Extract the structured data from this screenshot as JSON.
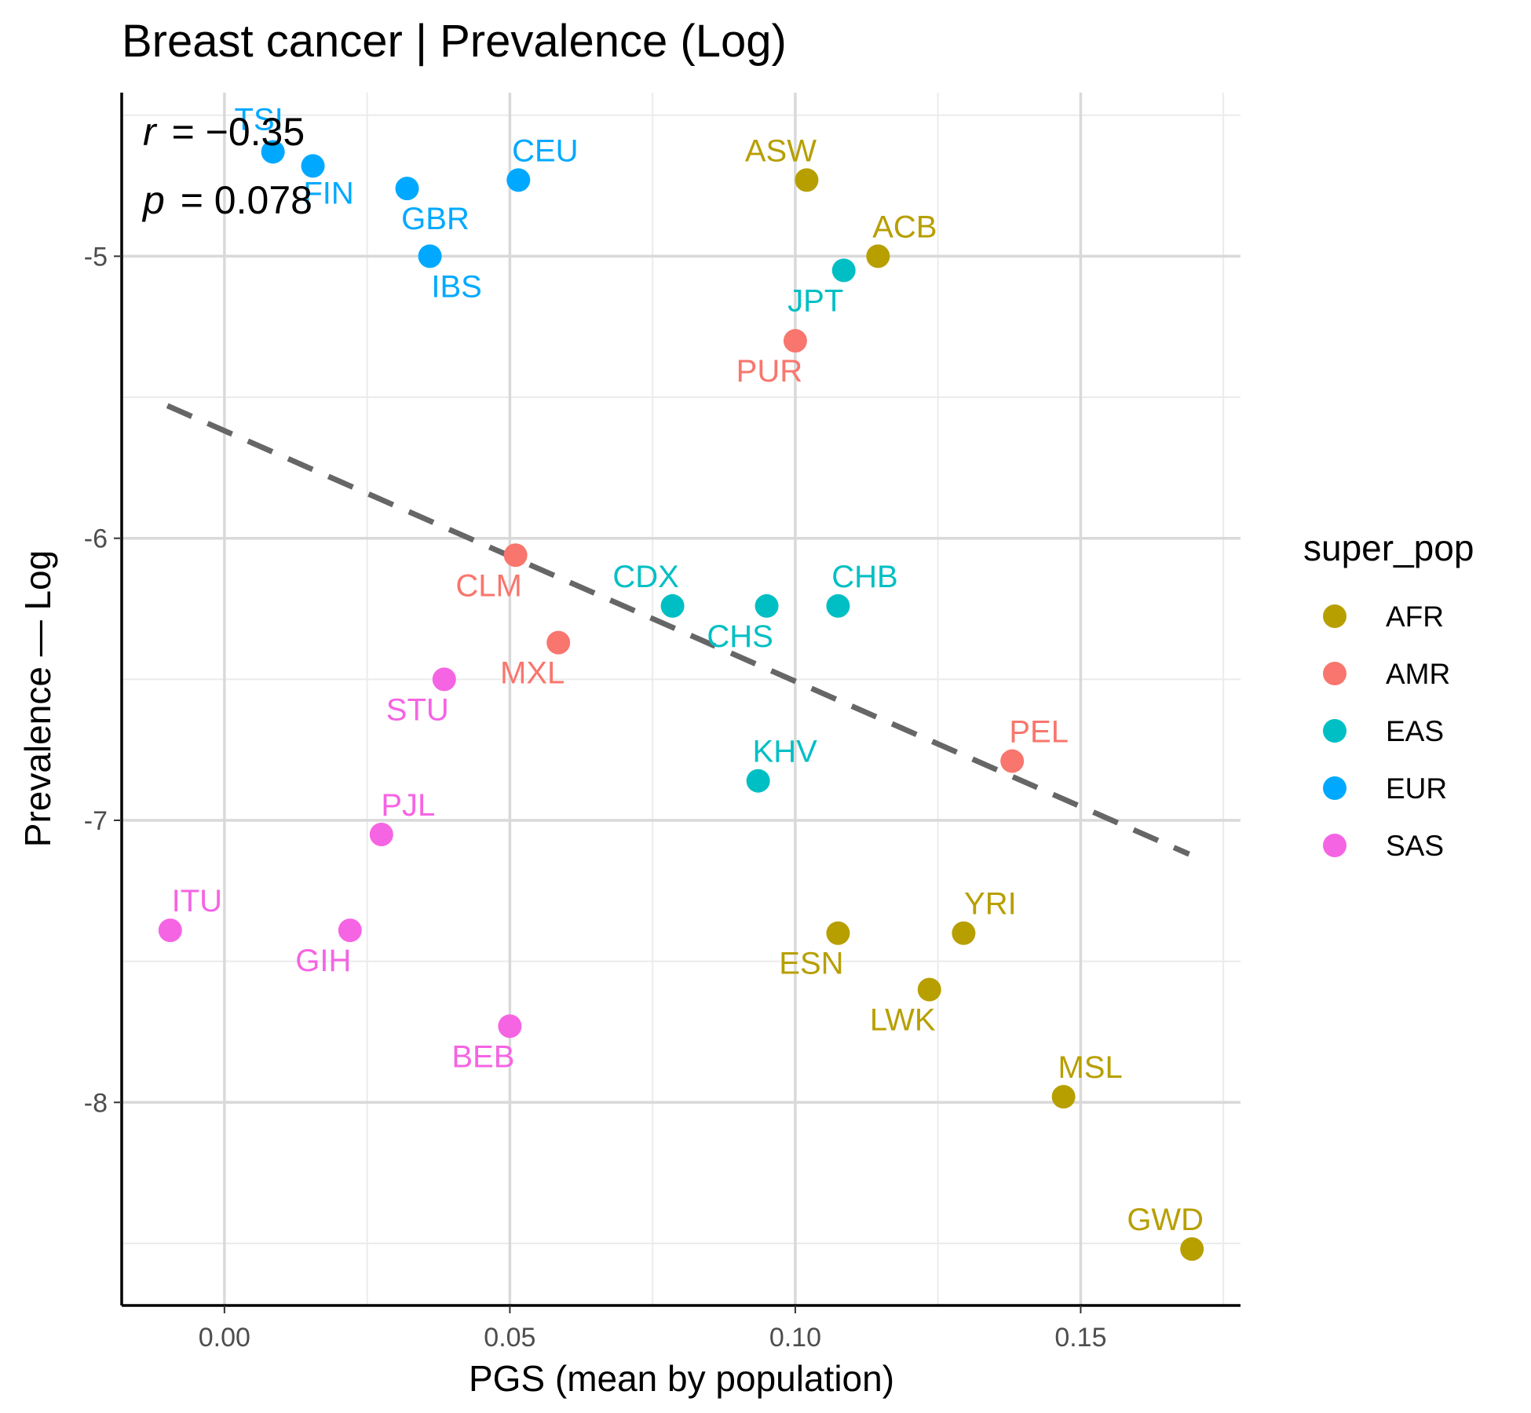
{
  "chart_data": {
    "type": "scatter",
    "title": "Breast cancer | Prevalence (Log)",
    "xlabel": "PGS (mean by population)",
    "ylabel": "Prevalence — Log",
    "xlim": [
      -0.018,
      0.178
    ],
    "ylim": [
      -8.72,
      -4.42
    ],
    "x_ticks": [
      0.0,
      0.05,
      0.1,
      0.15
    ],
    "x_tick_labels": [
      "0.00",
      "0.05",
      "0.10",
      "0.15"
    ],
    "y_ticks": [
      -5,
      -6,
      -7,
      -8
    ],
    "y_tick_labels": [
      "-5",
      "-6",
      "-7",
      "-8"
    ],
    "grid": true,
    "stats": {
      "r_label": "r",
      "r_value": "= −0.35",
      "p_label": "p",
      "p_value": "= 0.078"
    },
    "fit_line": {
      "style": "dashed",
      "color": "#666666",
      "x": [
        -0.01,
        0.169
      ],
      "y": [
        -5.53,
        -7.12
      ]
    },
    "legend": {
      "title": "super_pop",
      "position": "right",
      "entries": [
        {
          "name": "AFR",
          "color": "#B79F00"
        },
        {
          "name": "AMR",
          "color": "#F8766D"
        },
        {
          "name": "EAS",
          "color": "#00BFC4"
        },
        {
          "name": "EUR",
          "color": "#00A9FF"
        },
        {
          "name": "SAS",
          "color": "#F564E3"
        }
      ]
    },
    "points": [
      {
        "label": "TSI",
        "group": "EUR",
        "x": 0.0085,
        "y": -4.63,
        "ldx": -18,
        "ldy": -28
      },
      {
        "label": "FIN",
        "group": "EUR",
        "x": 0.0155,
        "y": -4.68,
        "ldx": 20,
        "ldy": 48
      },
      {
        "label": "GBR",
        "group": "EUR",
        "x": 0.032,
        "y": -4.76,
        "ldx": 36,
        "ldy": 52
      },
      {
        "label": "IBS",
        "group": "EUR",
        "x": 0.036,
        "y": -5.0,
        "ldx": 34,
        "ldy": 52
      },
      {
        "label": "CEU",
        "group": "EUR",
        "x": 0.0515,
        "y": -4.73,
        "ldx": 34,
        "ldy": -24
      },
      {
        "label": "ASW",
        "group": "AFR",
        "x": 0.102,
        "y": -4.73,
        "ldx": -33,
        "ldy": -24
      },
      {
        "label": "ACB",
        "group": "AFR",
        "x": 0.1145,
        "y": -5.0,
        "ldx": 34,
        "ldy": -24
      },
      {
        "label": "JPT",
        "group": "EAS",
        "x": 0.1085,
        "y": -5.05,
        "ldx": -36,
        "ldy": 52
      },
      {
        "label": "PUR",
        "group": "AMR",
        "x": 0.1,
        "y": -5.3,
        "ldx": -33,
        "ldy": 52
      },
      {
        "label": "CLM",
        "group": "AMR",
        "x": 0.051,
        "y": -6.06,
        "ldx": -34,
        "ldy": 52
      },
      {
        "label": "MXL",
        "group": "AMR",
        "x": 0.0585,
        "y": -6.37,
        "ldx": -33,
        "ldy": 52
      },
      {
        "label": "PEL",
        "group": "AMR",
        "x": 0.138,
        "y": -6.79,
        "ldx": 34,
        "ldy": -24
      },
      {
        "label": "CDX",
        "group": "EAS",
        "x": 0.0785,
        "y": -6.24,
        "ldx": -34,
        "ldy": -24
      },
      {
        "label": "CHS",
        "group": "EAS",
        "x": 0.095,
        "y": -6.24,
        "ldx": -34,
        "ldy": 52
      },
      {
        "label": "CHB",
        "group": "EAS",
        "x": 0.1075,
        "y": -6.24,
        "ldx": 34,
        "ldy": -24
      },
      {
        "label": "KHV",
        "group": "EAS",
        "x": 0.0935,
        "y": -6.86,
        "ldx": 34,
        "ldy": -24
      },
      {
        "label": "STU",
        "group": "SAS",
        "x": 0.0385,
        "y": -6.5,
        "ldx": -34,
        "ldy": 52
      },
      {
        "label": "PJL",
        "group": "SAS",
        "x": 0.0275,
        "y": -7.05,
        "ldx": 34,
        "ldy": -24
      },
      {
        "label": "ITU",
        "group": "SAS",
        "x": -0.0095,
        "y": -7.39,
        "ldx": 34,
        "ldy": -24
      },
      {
        "label": "GIH",
        "group": "SAS",
        "x": 0.022,
        "y": -7.39,
        "ldx": -34,
        "ldy": 52
      },
      {
        "label": "BEB",
        "group": "SAS",
        "x": 0.05,
        "y": -7.73,
        "ldx": -34,
        "ldy": 52
      },
      {
        "label": "YRI",
        "group": "AFR",
        "x": 0.1295,
        "y": -7.4,
        "ldx": 34,
        "ldy": -24
      },
      {
        "label": "ESN",
        "group": "AFR",
        "x": 0.1075,
        "y": -7.4,
        "ldx": -34,
        "ldy": 52
      },
      {
        "label": "LWK",
        "group": "AFR",
        "x": 0.1235,
        "y": -7.6,
        "ldx": -34,
        "ldy": 52
      },
      {
        "label": "MSL",
        "group": "AFR",
        "x": 0.147,
        "y": -7.98,
        "ldx": 34,
        "ldy": -24
      },
      {
        "label": "GWD",
        "group": "AFR",
        "x": 0.1695,
        "y": -8.52,
        "ldx": -34,
        "ldy": -24
      }
    ]
  }
}
